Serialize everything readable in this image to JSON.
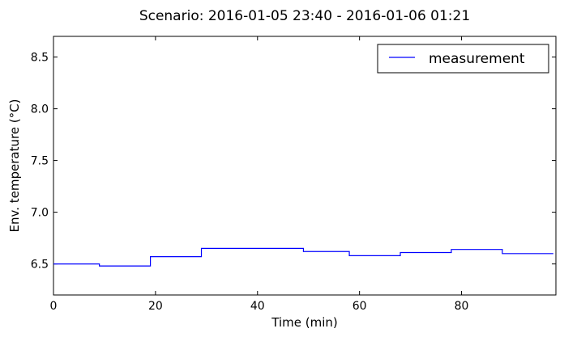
{
  "chart_data": {
    "type": "line",
    "title": "Scenario: 2016-01-05 23:40 - 2016-01-06 01:21",
    "xlabel": "Time (min)",
    "ylabel": "Env. temperature (°C)",
    "xlim": [
      0,
      98.5
    ],
    "ylim": [
      6.2,
      8.7
    ],
    "xticks": [
      0,
      20,
      40,
      60,
      80
    ],
    "yticks": [
      6.5,
      7.0,
      7.5,
      8.0,
      8.5
    ],
    "xtick_labels": [
      "0",
      "20",
      "40",
      "60",
      "80"
    ],
    "ytick_labels": [
      "6.5",
      "7.0",
      "7.5",
      "8.0",
      "8.5"
    ],
    "grid": false,
    "legend_position": "top-right",
    "step": true,
    "series": [
      {
        "name": "measurement",
        "color": "#0000ff",
        "x": [
          0,
          9,
          19,
          29,
          49,
          58,
          68,
          78,
          88,
          98
        ],
        "y": [
          6.5,
          6.48,
          6.57,
          6.65,
          6.62,
          6.58,
          6.61,
          6.64,
          6.6,
          6.6
        ]
      }
    ]
  }
}
